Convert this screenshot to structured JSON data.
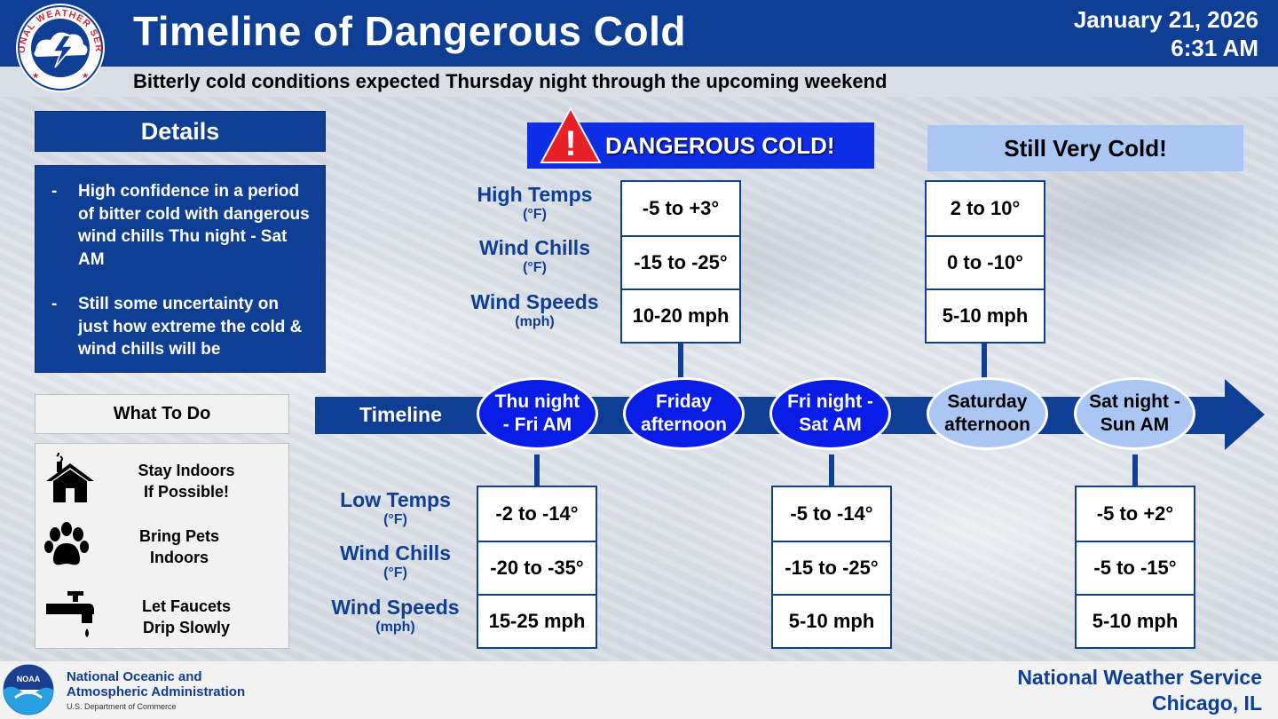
{
  "header": {
    "title": "Timeline of Dangerous Cold",
    "subtitle": "Bitterly cold conditions expected Thursday night through the upcoming weekend",
    "date": "January 21, 2026",
    "time": "6:31 AM",
    "logo_text": "NATIONAL WEATHER SERVICE"
  },
  "details": {
    "heading": "Details",
    "bullets": [
      "High confidence in a period of bitter cold with dangerous wind chills Thu night - Sat AM",
      "Still some uncertainty on just how extreme the cold & wind chills will be"
    ],
    "dash": "-"
  },
  "what_to_do": {
    "heading": "What To Do",
    "items": [
      {
        "line1": "Stay Indoors",
        "line2": "If Possible!",
        "icon": "house-icon"
      },
      {
        "line1": "Bring Pets",
        "line2": "Indoors",
        "icon": "paw-icon"
      },
      {
        "line1": "Let Faucets",
        "line2": "Drip Slowly",
        "icon": "faucet-icon"
      }
    ]
  },
  "banners": {
    "danger": "DANGEROUS COLD!",
    "danger_mark": "!",
    "still_cold": "Still Very Cold!"
  },
  "labels": {
    "upper": [
      {
        "name": "High Temps",
        "unit": "(°F)"
      },
      {
        "name": "Wind Chills",
        "unit": "(°F)"
      },
      {
        "name": "Wind Speeds",
        "unit": "(mph)"
      }
    ],
    "lower": [
      {
        "name": "Low Temps",
        "unit": "(°F)"
      },
      {
        "name": "Wind Chills",
        "unit": "(°F)"
      },
      {
        "name": "Wind Speeds",
        "unit": "(mph)"
      }
    ]
  },
  "timeline": {
    "label": "Timeline",
    "periods": [
      {
        "line1": "Thu night",
        "line2": "- Fri AM",
        "style": "dark",
        "values": [
          "-2 to -14°",
          "-20 to -35°",
          "15-25 mph"
        ]
      },
      {
        "line1": "Friday",
        "line2": "afternoon",
        "style": "dark",
        "values": [
          "-5 to +3°",
          "-15 to -25°",
          "10-20 mph"
        ]
      },
      {
        "line1": "Fri night -",
        "line2": "Sat AM",
        "style": "dark",
        "values": [
          "-5 to -14°",
          "-15 to -25°",
          "5-10 mph"
        ]
      },
      {
        "line1": "Saturday",
        "line2": "afternoon",
        "style": "light",
        "values": [
          "2 to 10°",
          "0 to -10°",
          "5-10 mph"
        ]
      },
      {
        "line1": "Sat night -",
        "line2": "Sun AM",
        "style": "light",
        "values": [
          "-5 to +2°",
          "-5 to -15°",
          "5-10 mph"
        ]
      }
    ]
  },
  "footer": {
    "noaa_logo_text": "NOAA",
    "noaa_line1": "National Oceanic and",
    "noaa_line2": "Atmospheric Administration",
    "noaa_line3": "U.S. Department of Commerce",
    "office_line1": "National Weather Service",
    "office_line2": "Chicago, IL"
  },
  "colors": {
    "navy": "#0f3e95",
    "bright_blue": "#0a1de6",
    "light_blue": "#aac6f3",
    "warning_red": "#e8202a"
  }
}
